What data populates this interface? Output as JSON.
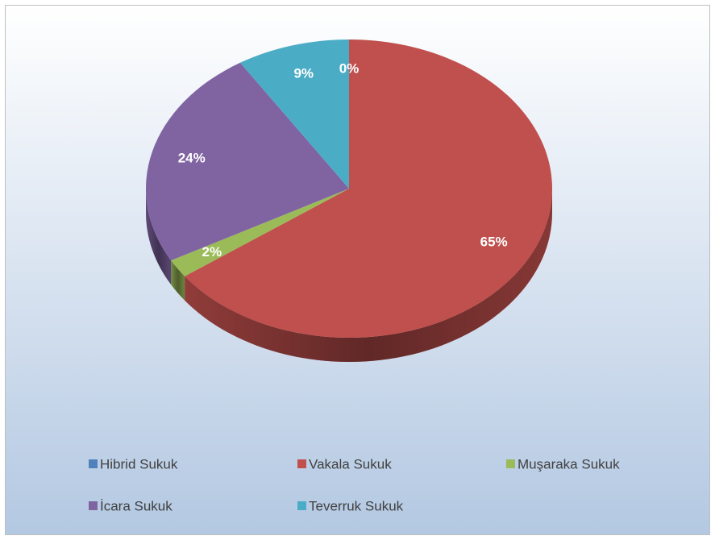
{
  "chart_data": {
    "type": "pie",
    "categories": [
      "Hibrid Sukuk",
      "Vakala Sukuk",
      "Muşaraka Sukuk",
      "İcara Sukuk",
      "Teverruk Sukuk"
    ],
    "values": [
      0,
      65,
      2,
      24,
      9
    ],
    "value_labels": [
      "0%",
      "65%",
      "2%",
      "24%",
      "9%"
    ],
    "colors": [
      "#4f81bd",
      "#c0504d",
      "#9bbb59",
      "#8064a2",
      "#4bacc6"
    ],
    "legend": "bottom"
  }
}
